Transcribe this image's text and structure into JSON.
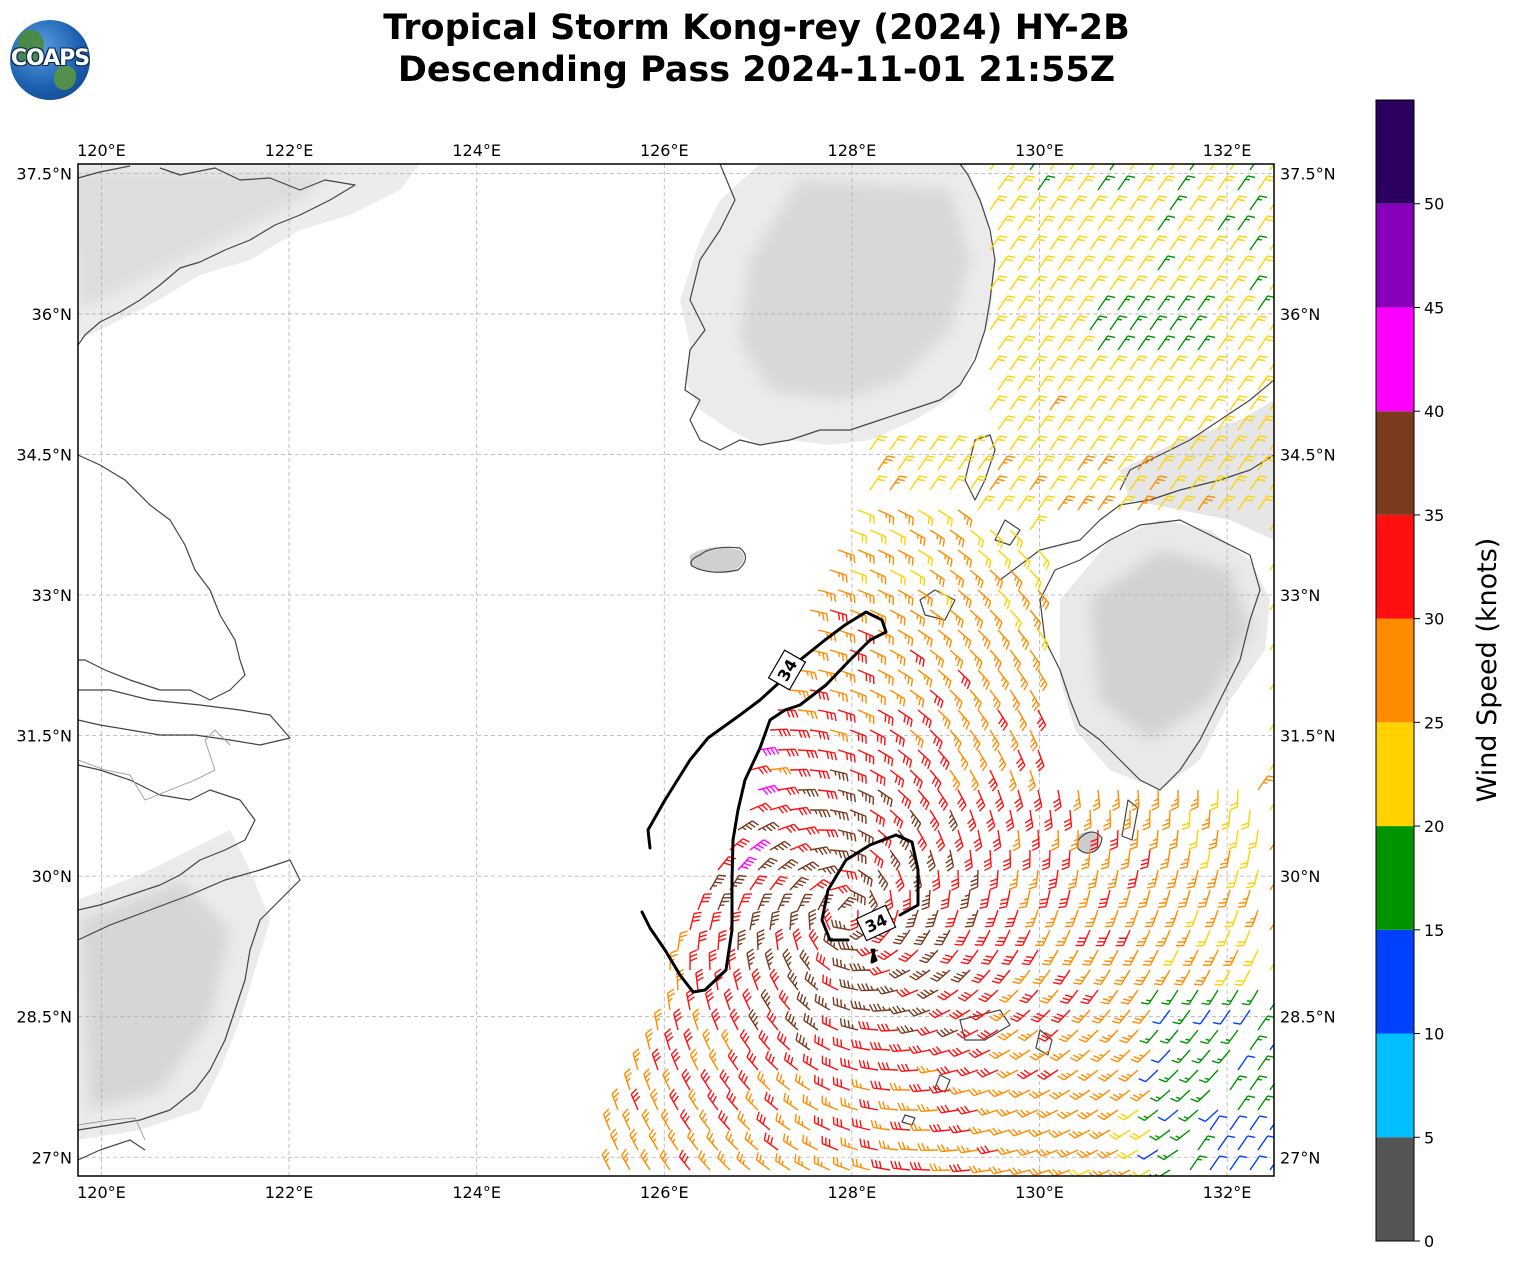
{
  "title_line1": "Tropical Storm Kong-rey (2024) HY-2B",
  "title_line2": "Descending Pass 2024-11-01 21:55Z",
  "logo_text": "COAPS",
  "map": {
    "lon_range": [
      119.75,
      132.5
    ],
    "lat_range": [
      26.8,
      37.6
    ],
    "lon_ticks": [
      120,
      122,
      124,
      126,
      128,
      130,
      132
    ],
    "lon_tick_labels": [
      "120°E",
      "122°E",
      "124°E",
      "126°E",
      "128°E",
      "130°E",
      "132°E"
    ],
    "lat_ticks": [
      27,
      28.5,
      30,
      31.5,
      33,
      34.5,
      36,
      37.5
    ],
    "lat_tick_labels": [
      "27°N",
      "28.5°N",
      "30°N",
      "31.5°N",
      "33°N",
      "34.5°N",
      "36°N",
      "37.5°N"
    ],
    "contour_label": "34",
    "storm_center": [
      127.95,
      29.6
    ]
  },
  "colorbar": {
    "label": "Wind Speed (knots)",
    "ticks": [
      0,
      5,
      10,
      15,
      20,
      25,
      30,
      35,
      40,
      45,
      50
    ],
    "tick_labels": [
      "0",
      "5",
      "10",
      "15",
      "20",
      "25",
      "30",
      "35",
      "40",
      "45",
      "50"
    ],
    "range": [
      0,
      55
    ],
    "colors": [
      "#555555",
      "#00bfff",
      "#0040ff",
      "#009400",
      "#ffd200",
      "#ff8c00",
      "#ff1010",
      "#7a3b1f",
      "#ff00ff",
      "#8800bb",
      "#2b0060"
    ]
  }
}
